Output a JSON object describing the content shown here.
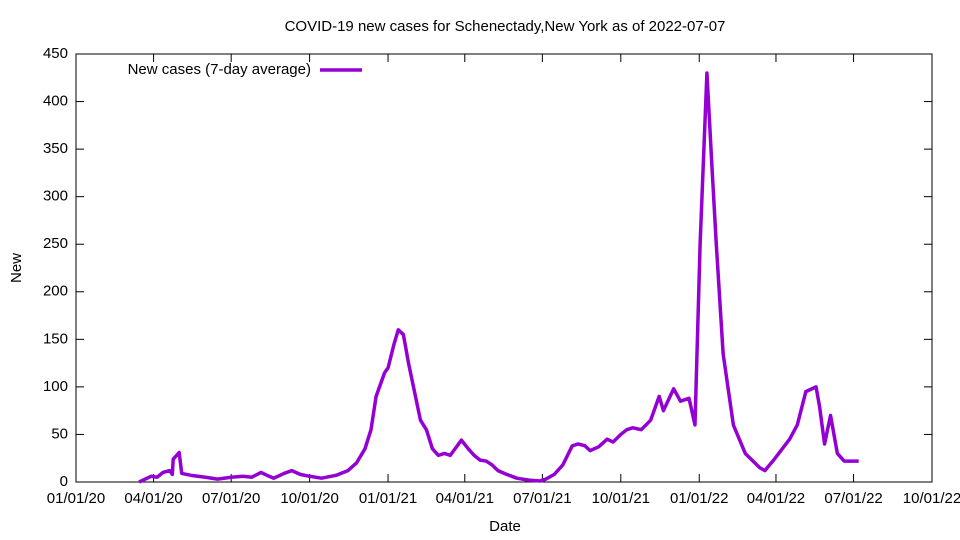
{
  "chart_data": {
    "type": "line",
    "title": "COVID-19 new cases for Schenectady,New York as of 2022-07-07",
    "x_label": "Date",
    "y_label": "New",
    "legend_position": "upper left",
    "x": [
      "03/15/20",
      "03/22/20",
      "03/29/20",
      "04/05/20",
      "04/12/20",
      "04/20/20",
      "04/23/20",
      "04/24/20",
      "05/01/20",
      "05/04/20",
      "05/15/20",
      "06/01/20",
      "06/15/20",
      "07/01/20",
      "07/15/20",
      "07/25/20",
      "08/05/20",
      "08/12/20",
      "08/20/20",
      "09/01/20",
      "09/10/20",
      "09/20/20",
      "10/01/20",
      "10/15/20",
      "11/01/20",
      "11/15/20",
      "11/25/20",
      "12/05/20",
      "12/12/20",
      "12/18/20",
      "12/22/20",
      "12/28/20",
      "01/01/21",
      "01/08/21",
      "01/13/21",
      "01/19/21",
      "01/25/21",
      "02/01/21",
      "02/08/21",
      "02/15/21",
      "02/22/21",
      "03/01/21",
      "03/08/21",
      "03/15/21",
      "03/28/21",
      "04/05/21",
      "04/12/21",
      "04/19/21",
      "04/26/21",
      "05/03/21",
      "05/10/21",
      "05/20/21",
      "06/01/21",
      "06/15/21",
      "06/28/21",
      "07/05/21",
      "07/15/21",
      "07/25/21",
      "08/05/21",
      "08/12/21",
      "08/20/21",
      "08/26/21",
      "09/05/21",
      "09/15/21",
      "09/22/21",
      "10/01/21",
      "10/08/21",
      "10/15/21",
      "10/25/21",
      "11/05/21",
      "11/15/21",
      "11/20/21",
      "12/02/21",
      "12/10/21",
      "12/20/21",
      "12/27/21",
      "01/02/22",
      "01/10/22",
      "01/16/22",
      "01/21/22",
      "01/29/22",
      "02/10/22",
      "02/24/22",
      "03/13/22",
      "03/19/22",
      "03/31/22",
      "04/17/22",
      "04/26/22",
      "05/06/22",
      "05/18/22",
      "05/22/22",
      "05/28/22",
      "06/04/22",
      "06/12/22",
      "06/20/22",
      "07/07/22"
    ],
    "series": [
      {
        "name": "New cases (7-day average)",
        "color": "#9400d3",
        "values": [
          0,
          3,
          6,
          5,
          10,
          12,
          8,
          24,
          31,
          9,
          7,
          5,
          3,
          5,
          6,
          5,
          10,
          7,
          4,
          9,
          12,
          8,
          6,
          4,
          7,
          12,
          20,
          35,
          55,
          90,
          100,
          115,
          120,
          145,
          160,
          155,
          125,
          95,
          65,
          55,
          35,
          28,
          30,
          28,
          44,
          35,
          28,
          23,
          22,
          18,
          12,
          8,
          4,
          2,
          1,
          3,
          8,
          18,
          38,
          40,
          38,
          33,
          37,
          45,
          42,
          50,
          55,
          57,
          55,
          65,
          90,
          75,
          98,
          85,
          88,
          60,
          250,
          430,
          330,
          250,
          135,
          60,
          30,
          15,
          12,
          25,
          45,
          60,
          95,
          100,
          80,
          40,
          70,
          30,
          22,
          22
        ]
      }
    ],
    "xlim": [
      "01/01/20",
      "10/01/22"
    ],
    "xticks": [
      "01/01/20",
      "04/01/20",
      "07/01/20",
      "10/01/20",
      "01/01/21",
      "04/01/21",
      "07/01/21",
      "10/01/21",
      "01/01/22",
      "04/01/22",
      "07/01/22",
      "10/01/22"
    ],
    "ylim": [
      0,
      450
    ],
    "yticks": [
      0,
      50,
      100,
      150,
      200,
      250,
      300,
      350,
      400,
      450
    ]
  }
}
